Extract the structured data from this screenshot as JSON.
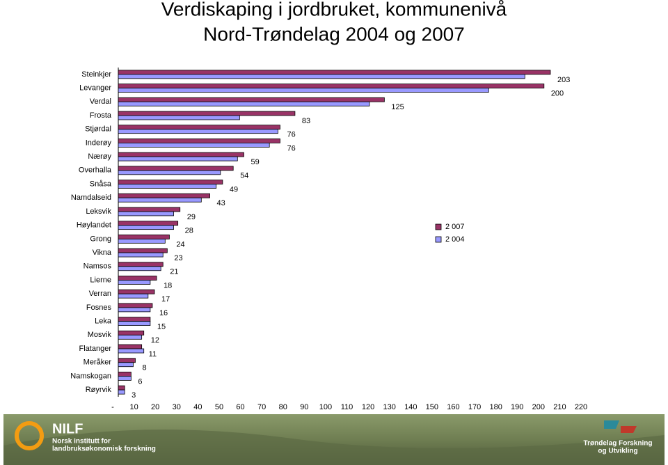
{
  "chart_data": {
    "type": "hbar",
    "title": "Verdiskaping i jordbruket, kommunenivå",
    "subtitle": "Nord-Trøndelag 2004 og 2007",
    "categories": [
      "Steinkjer",
      "Levanger",
      "Verdal",
      "Frosta",
      "Stjørdal",
      "Inderøy",
      "Nærøy",
      "Overhalla",
      "Snåsa",
      "Namdalseid",
      "Leksvik",
      "Høylandet",
      "Grong",
      "Vikna",
      "Namsos",
      "Lierne",
      "Verran",
      "Fosnes",
      "Leka",
      "Mosvik",
      "Flatanger",
      "Meråker",
      "Namskogan",
      "Røyrvik"
    ],
    "series": [
      {
        "name": "2 007",
        "color": "#993366",
        "values": [
          203,
          200,
          125,
          83,
          76,
          76,
          59,
          54,
          49,
          43,
          29,
          28,
          24,
          23,
          21,
          18,
          17,
          16,
          15,
          12,
          11,
          8,
          6,
          3
        ],
        "labels": true
      },
      {
        "name": "2 004",
        "color": "#9999ff",
        "values": [
          191,
          174,
          118,
          57,
          75,
          71,
          56,
          48,
          46,
          39,
          26,
          26,
          22,
          21,
          20,
          15,
          14,
          15,
          15,
          11,
          12,
          7,
          6,
          3
        ]
      }
    ],
    "xlim": [
      0,
      220
    ],
    "xticks": [
      {
        "value": 0,
        "label": "-"
      },
      10,
      20,
      30,
      40,
      50,
      60,
      70,
      80,
      90,
      100,
      110,
      120,
      130,
      140,
      150,
      160,
      170,
      180,
      190,
      200,
      210,
      220
    ],
    "legend": "right"
  },
  "footer": {
    "logo": "NILF",
    "left_text": [
      "Norsk institutt for",
      "landbruksøkonomisk forskning"
    ],
    "right_text": [
      "Trøndelag Forskning",
      "og Utvikling"
    ]
  }
}
